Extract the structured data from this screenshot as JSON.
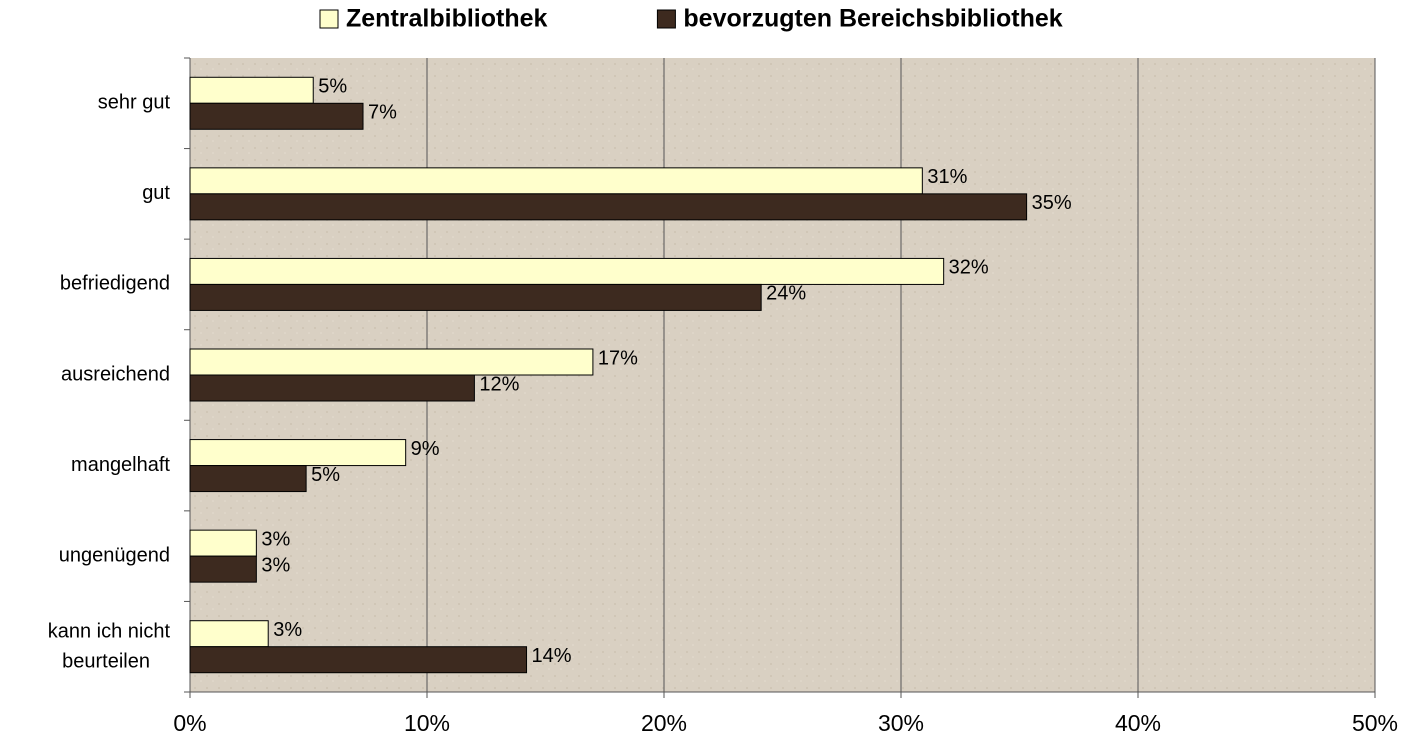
{
  "chart_data": {
    "type": "hbar",
    "categories": [
      "sehr gut",
      "gut",
      "befriedigend",
      "ausreichend",
      "mangelhaft",
      "ungenügend",
      "kann ich nicht beurteilen"
    ],
    "series": [
      {
        "name": "Zentralbibliothek",
        "color": "#ffffcc",
        "values": [
          5.2,
          30.9,
          31.8,
          17.0,
          9.1,
          2.8,
          3.3
        ],
        "value_labels": [
          "5%",
          "31%",
          "32%",
          "17%",
          "9%",
          "3%",
          "3%"
        ]
      },
      {
        "name": "bevorzugten Bereichsbibliothek",
        "color": "#3d2a1f",
        "values": [
          7.3,
          35.3,
          24.1,
          12.0,
          4.9,
          2.8,
          14.2
        ],
        "value_labels": [
          "7%",
          "35%",
          "24%",
          "12%",
          "5%",
          "3%",
          "14%"
        ]
      }
    ],
    "xlim": [
      0,
      50
    ],
    "xticks": [
      {
        "value": 0,
        "label": "0%"
      },
      {
        "value": 10,
        "label": "10%"
      },
      {
        "value": 20,
        "label": "20%"
      },
      {
        "value": 30,
        "label": "30%"
      },
      {
        "value": 40,
        "label": "40%"
      },
      {
        "value": 50,
        "label": "50%"
      }
    ],
    "grid": true,
    "legend": "top"
  }
}
